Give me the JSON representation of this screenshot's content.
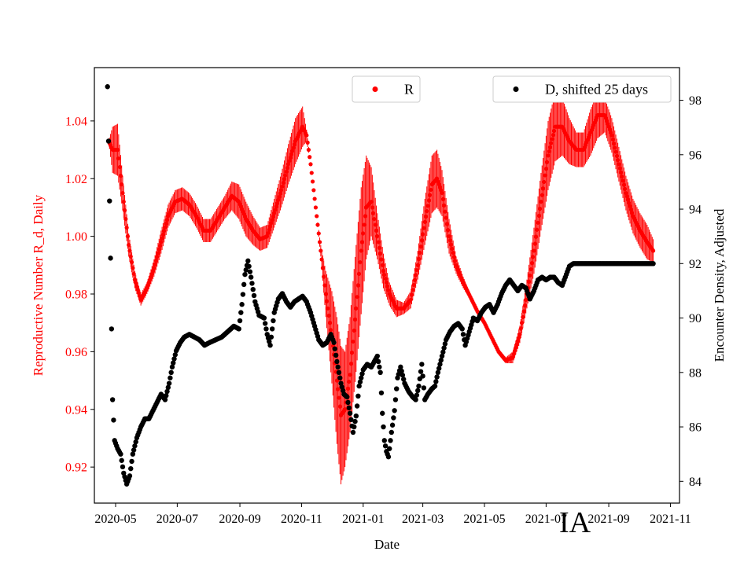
{
  "chart_data": {
    "type": "scatter",
    "xlabel": "Date",
    "ylabel_left": "Reproductive Number R_d, Daily",
    "ylabel_right": "Encounter Density, Adjusted",
    "x_range": [
      "2020-04-10",
      "2021-11-10"
    ],
    "ylim_left": [
      0.9075,
      1.0585
    ],
    "ylim_right": [
      83.2,
      99.2
    ],
    "x_ticks": [
      "2020-05",
      "2020-07",
      "2020-09",
      "2020-11",
      "2021-01",
      "2021-03",
      "2021-05",
      "2021-07",
      "2021-09",
      "2021-11"
    ],
    "y_ticks_left": [
      "0.92",
      "0.94",
      "0.96",
      "0.98",
      "1.00",
      "1.02",
      "1.04"
    ],
    "y_ticks_right": [
      "84",
      "86",
      "88",
      "90",
      "92",
      "94",
      "96",
      "98"
    ],
    "left_axis_color": "#ff0000",
    "right_axis_color": "#000000",
    "grid": false,
    "series": [
      {
        "name": "R",
        "axis": "left",
        "color": "#ff0000",
        "marker": "dot",
        "error_bars": true,
        "points": [
          [
            "2020-04-24",
            1.033,
            0.0
          ],
          [
            "2020-04-28",
            1.03,
            0.008
          ],
          [
            "2020-05-03",
            1.03,
            0.009
          ],
          [
            "2020-05-08",
            1.015,
            0.006
          ],
          [
            "2020-05-14",
            0.997,
            0.004
          ],
          [
            "2020-05-20",
            0.985,
            0.003
          ],
          [
            "2020-05-26",
            0.978,
            0.002
          ],
          [
            "2020-06-01",
            0.982,
            0.002
          ],
          [
            "2020-06-08",
            0.989,
            0.003
          ],
          [
            "2020-06-15",
            0.998,
            0.004
          ],
          [
            "2020-06-22",
            1.007,
            0.004
          ],
          [
            "2020-06-29",
            1.012,
            0.004
          ],
          [
            "2020-07-06",
            1.013,
            0.004
          ],
          [
            "2020-07-13",
            1.011,
            0.004
          ],
          [
            "2020-07-20",
            1.007,
            0.004
          ],
          [
            "2020-07-27",
            1.002,
            0.004
          ],
          [
            "2020-08-03",
            1.002,
            0.004
          ],
          [
            "2020-08-10",
            1.006,
            0.004
          ],
          [
            "2020-08-17",
            1.01,
            0.004
          ],
          [
            "2020-08-24",
            1.014,
            0.005
          ],
          [
            "2020-08-31",
            1.012,
            0.006
          ],
          [
            "2020-09-07",
            1.006,
            0.006
          ],
          [
            "2020-09-14",
            1.002,
            0.005
          ],
          [
            "2020-09-21",
            0.999,
            0.004
          ],
          [
            "2020-09-28",
            1.0,
            0.004
          ],
          [
            "2020-10-05",
            1.008,
            0.005
          ],
          [
            "2020-10-12",
            1.016,
            0.006
          ],
          [
            "2020-10-19",
            1.025,
            0.007
          ],
          [
            "2020-10-26",
            1.033,
            0.008
          ],
          [
            "2020-11-02",
            1.038,
            0.007
          ],
          [
            "2020-11-06",
            1.035,
            0.002
          ],
          [
            "2020-11-10",
            1.025,
            0.0
          ],
          [
            "2020-11-15",
            1.01,
            0.0
          ],
          [
            "2020-11-20",
            0.995,
            0.002
          ],
          [
            "2020-11-25",
            0.98,
            0.008
          ],
          [
            "2020-12-01",
            0.965,
            0.016
          ],
          [
            "2020-12-06",
            0.95,
            0.022
          ],
          [
            "2020-12-10",
            0.938,
            0.024
          ],
          [
            "2020-12-14",
            0.94,
            0.02
          ],
          [
            "2020-12-19",
            0.952,
            0.02
          ],
          [
            "2020-12-25",
            0.975,
            0.022
          ],
          [
            "2020-12-30",
            0.995,
            0.022
          ],
          [
            "2021-01-04",
            1.01,
            0.018
          ],
          [
            "2021-01-09",
            1.012,
            0.012
          ],
          [
            "2021-01-15",
            1.0,
            0.008
          ],
          [
            "2021-01-21",
            0.988,
            0.006
          ],
          [
            "2021-01-27",
            0.98,
            0.004
          ],
          [
            "2021-02-03",
            0.975,
            0.003
          ],
          [
            "2021-02-10",
            0.975,
            0.002
          ],
          [
            "2021-02-17",
            0.978,
            0.003
          ],
          [
            "2021-02-24",
            0.99,
            0.005
          ],
          [
            "2021-03-03",
            1.005,
            0.008
          ],
          [
            "2021-03-10",
            1.018,
            0.01
          ],
          [
            "2021-03-15",
            1.02,
            0.01
          ],
          [
            "2021-03-20",
            1.015,
            0.008
          ],
          [
            "2021-03-27",
            1.0,
            0.006
          ],
          [
            "2021-04-03",
            0.99,
            0.003
          ],
          [
            "2021-04-10",
            0.984,
            0.002
          ],
          [
            "2021-04-17",
            0.979,
            0.001
          ],
          [
            "2021-04-24",
            0.974,
            0.001
          ],
          [
            "2021-05-01",
            0.97,
            0.001
          ],
          [
            "2021-05-08",
            0.965,
            0.001
          ],
          [
            "2021-05-15",
            0.96,
            0.001
          ],
          [
            "2021-05-22",
            0.957,
            0.001
          ],
          [
            "2021-05-29",
            0.958,
            0.002
          ],
          [
            "2021-06-05",
            0.966,
            0.003
          ],
          [
            "2021-06-12",
            0.98,
            0.005
          ],
          [
            "2021-06-19",
            0.995,
            0.008
          ],
          [
            "2021-06-26",
            1.012,
            0.01
          ],
          [
            "2021-07-03",
            1.028,
            0.012
          ],
          [
            "2021-07-10",
            1.038,
            0.012
          ],
          [
            "2021-07-17",
            1.038,
            0.01
          ],
          [
            "2021-07-24",
            1.033,
            0.008
          ],
          [
            "2021-07-31",
            1.03,
            0.006
          ],
          [
            "2021-08-07",
            1.03,
            0.006
          ],
          [
            "2021-08-14",
            1.036,
            0.008
          ],
          [
            "2021-08-21",
            1.042,
            0.008
          ],
          [
            "2021-08-28",
            1.042,
            0.006
          ],
          [
            "2021-09-04",
            1.035,
            0.006
          ],
          [
            "2021-09-11",
            1.025,
            0.006
          ],
          [
            "2021-09-18",
            1.015,
            0.006
          ],
          [
            "2021-09-25",
            1.007,
            0.006
          ],
          [
            "2021-10-02",
            1.002,
            0.006
          ],
          [
            "2021-10-09",
            0.998,
            0.006
          ],
          [
            "2021-10-15",
            0.995,
            0.004
          ]
        ]
      },
      {
        "name": "D, shifted 25 days",
        "axis": "right",
        "color": "#000000",
        "marker": "dot",
        "points": [
          [
            "2020-04-23",
            98.5
          ],
          [
            "2020-04-24",
            96.5
          ],
          [
            "2020-04-25",
            94.3
          ],
          [
            "2020-04-26",
            92.2
          ],
          [
            "2020-04-27",
            89.6
          ],
          [
            "2020-04-28",
            87.0
          ],
          [
            "2020-04-30",
            85.5
          ],
          [
            "2020-05-03",
            85.2
          ],
          [
            "2020-05-06",
            85.0
          ],
          [
            "2020-05-09",
            84.3
          ],
          [
            "2020-05-12",
            83.9
          ],
          [
            "2020-05-15",
            84.2
          ],
          [
            "2020-05-18",
            85.0
          ],
          [
            "2020-05-22",
            85.6
          ],
          [
            "2020-05-26",
            86.0
          ],
          [
            "2020-05-30",
            86.3
          ],
          [
            "2020-06-03",
            86.3
          ],
          [
            "2020-06-07",
            86.6
          ],
          [
            "2020-06-11",
            86.9
          ],
          [
            "2020-06-15",
            87.2
          ],
          [
            "2020-06-19",
            87.0
          ],
          [
            "2020-06-23",
            87.6
          ],
          [
            "2020-06-26",
            88.2
          ],
          [
            "2020-06-30",
            88.8
          ],
          [
            "2020-07-04",
            89.1
          ],
          [
            "2020-07-08",
            89.3
          ],
          [
            "2020-07-13",
            89.4
          ],
          [
            "2020-07-18",
            89.3
          ],
          [
            "2020-07-23",
            89.2
          ],
          [
            "2020-07-28",
            89.0
          ],
          [
            "2020-08-02",
            89.1
          ],
          [
            "2020-08-08",
            89.2
          ],
          [
            "2020-08-14",
            89.3
          ],
          [
            "2020-08-20",
            89.5
          ],
          [
            "2020-08-26",
            89.7
          ],
          [
            "2020-08-31",
            89.6
          ],
          [
            "2020-09-03",
            90.5
          ],
          [
            "2020-09-06",
            91.6
          ],
          [
            "2020-09-09",
            92.1
          ],
          [
            "2020-09-12",
            91.5
          ],
          [
            "2020-09-16",
            90.6
          ],
          [
            "2020-09-20",
            90.1
          ],
          [
            "2020-09-25",
            90.0
          ],
          [
            "2020-09-28",
            89.4
          ],
          [
            "2020-10-01",
            89.0
          ],
          [
            "2020-10-05",
            90.2
          ],
          [
            "2020-10-09",
            90.7
          ],
          [
            "2020-10-13",
            90.9
          ],
          [
            "2020-10-17",
            90.6
          ],
          [
            "2020-10-21",
            90.4
          ],
          [
            "2020-10-25",
            90.6
          ],
          [
            "2020-10-29",
            90.7
          ],
          [
            "2020-11-02",
            90.8
          ],
          [
            "2020-11-06",
            90.6
          ],
          [
            "2020-11-10",
            90.2
          ],
          [
            "2020-11-14",
            89.7
          ],
          [
            "2020-11-18",
            89.2
          ],
          [
            "2020-11-22",
            89.0
          ],
          [
            "2020-11-26",
            89.1
          ],
          [
            "2020-11-30",
            89.4
          ],
          [
            "2020-12-03",
            89.1
          ],
          [
            "2020-12-06",
            88.4
          ],
          [
            "2020-12-10",
            87.6
          ],
          [
            "2020-12-13",
            87.2
          ],
          [
            "2020-12-16",
            87.1
          ],
          [
            "2020-12-19",
            86.5
          ],
          [
            "2020-12-22",
            85.8
          ],
          [
            "2020-12-25",
            86.4
          ],
          [
            "2020-12-28",
            87.5
          ],
          [
            "2021-01-01",
            88.1
          ],
          [
            "2021-01-05",
            88.3
          ],
          [
            "2021-01-09",
            88.2
          ],
          [
            "2021-01-12",
            88.4
          ],
          [
            "2021-01-15",
            88.6
          ],
          [
            "2021-01-18",
            88.0
          ],
          [
            "2021-01-20",
            86.5
          ],
          [
            "2021-01-22",
            85.5
          ],
          [
            "2021-01-24",
            85.1
          ],
          [
            "2021-01-26",
            84.9
          ],
          [
            "2021-01-29",
            85.8
          ],
          [
            "2021-02-01",
            86.6
          ],
          [
            "2021-02-04",
            87.8
          ],
          [
            "2021-02-07",
            88.2
          ],
          [
            "2021-02-11",
            87.6
          ],
          [
            "2021-02-15",
            87.3
          ],
          [
            "2021-02-19",
            87.1
          ],
          [
            "2021-02-22",
            87.0
          ],
          [
            "2021-02-25",
            87.5
          ],
          [
            "2021-02-28",
            88.3
          ],
          [
            "2021-03-03",
            87.0
          ],
          [
            "2021-03-06",
            87.2
          ],
          [
            "2021-03-10",
            87.4
          ],
          [
            "2021-03-13",
            87.5
          ],
          [
            "2021-03-16",
            88.0
          ],
          [
            "2021-03-20",
            88.6
          ],
          [
            "2021-03-24",
            89.2
          ],
          [
            "2021-03-28",
            89.5
          ],
          [
            "2021-04-01",
            89.7
          ],
          [
            "2021-04-05",
            89.8
          ],
          [
            "2021-04-09",
            89.6
          ],
          [
            "2021-04-12",
            89.0
          ],
          [
            "2021-04-16",
            89.5
          ],
          [
            "2021-04-20",
            90.0
          ],
          [
            "2021-04-24",
            89.9
          ],
          [
            "2021-04-28",
            90.2
          ],
          [
            "2021-05-02",
            90.4
          ],
          [
            "2021-05-06",
            90.5
          ],
          [
            "2021-05-10",
            90.2
          ],
          [
            "2021-05-14",
            90.5
          ],
          [
            "2021-05-18",
            90.9
          ],
          [
            "2021-05-22",
            91.2
          ],
          [
            "2021-05-26",
            91.4
          ],
          [
            "2021-05-30",
            91.2
          ],
          [
            "2021-06-03",
            91.0
          ],
          [
            "2021-06-07",
            91.2
          ],
          [
            "2021-06-11",
            91.1
          ],
          [
            "2021-06-15",
            90.7
          ],
          [
            "2021-06-19",
            91.0
          ],
          [
            "2021-06-23",
            91.4
          ],
          [
            "2021-06-27",
            91.5
          ],
          [
            "2021-07-01",
            91.4
          ],
          [
            "2021-07-05",
            91.5
          ],
          [
            "2021-07-09",
            91.5
          ],
          [
            "2021-07-13",
            91.3
          ],
          [
            "2021-07-17",
            91.2
          ],
          [
            "2021-07-21",
            91.6
          ],
          [
            "2021-07-24",
            91.9
          ],
          [
            "2021-07-28",
            92.0
          ],
          [
            "2021-08-01",
            92.0
          ],
          [
            "2021-08-05",
            92.0
          ],
          [
            "2021-08-09",
            92.0
          ],
          [
            "2021-08-13",
            92.0
          ],
          [
            "2021-08-17",
            92.0
          ],
          [
            "2021-08-21",
            92.0
          ],
          [
            "2021-08-25",
            92.0
          ],
          [
            "2021-08-29",
            92.0
          ],
          [
            "2021-09-02",
            92.0
          ],
          [
            "2021-09-06",
            92.0
          ],
          [
            "2021-09-10",
            92.0
          ],
          [
            "2021-09-14",
            92.0
          ],
          [
            "2021-09-18",
            92.0
          ],
          [
            "2021-09-22",
            92.0
          ],
          [
            "2021-09-26",
            92.0
          ],
          [
            "2021-09-30",
            92.0
          ],
          [
            "2021-10-04",
            92.0
          ],
          [
            "2021-10-08",
            92.0
          ],
          [
            "2021-10-12",
            92.0
          ],
          [
            "2021-10-15",
            92.0
          ]
        ]
      }
    ],
    "legend": [
      {
        "label": "R",
        "color": "#ff0000",
        "placement": "top-center"
      },
      {
        "label": "D, shifted 25 days",
        "color": "#000000",
        "placement": "top-right"
      }
    ],
    "watermark": "IA"
  }
}
